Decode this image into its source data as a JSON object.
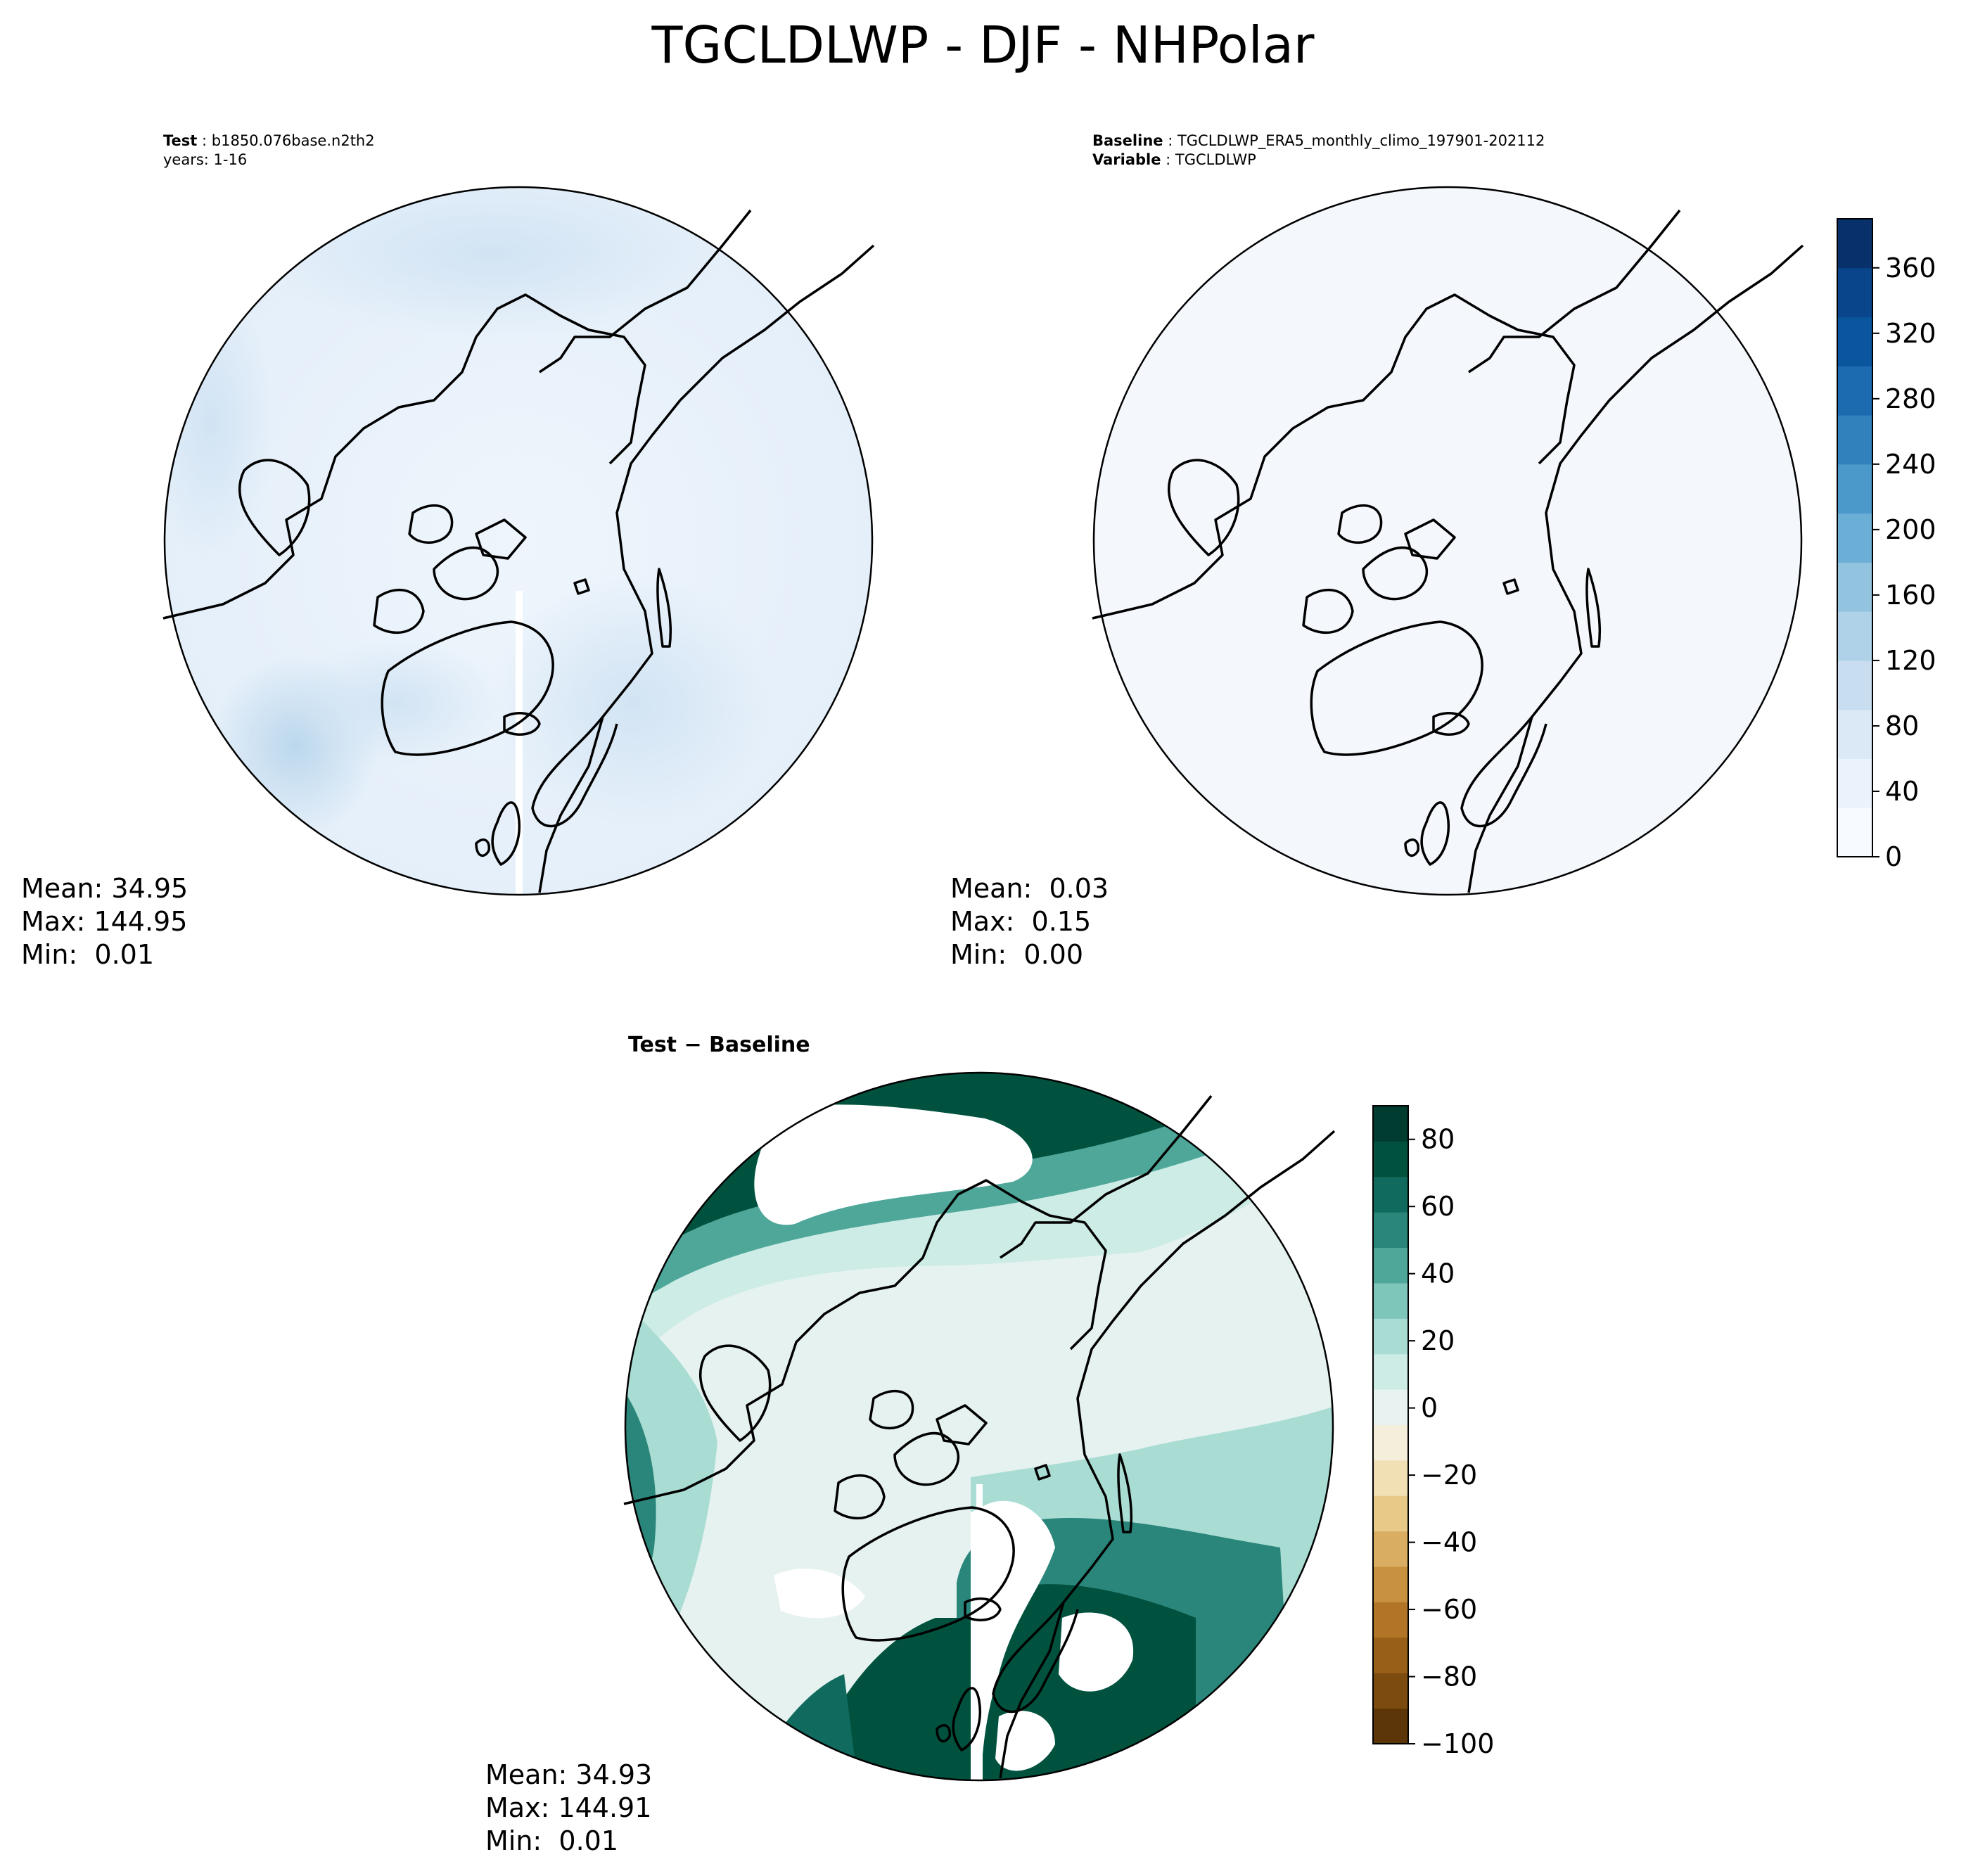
{
  "figure": {
    "title": "TGCLDLWP - DJF - NHPolar"
  },
  "test_panel": {
    "label_key": "Test",
    "label_value": "b1850.076base.n2th2",
    "years": "years: 1-16",
    "stats": {
      "mean": "Mean: 34.95",
      "max": "Max: 144.95",
      "min": "Min:  0.01"
    },
    "field": "test-field"
  },
  "baseline_panel": {
    "label_key": "Baseline",
    "label_value": "TGCLDLWP_ERA5_monthly_climo_197901-202112",
    "variable_key": "Variable",
    "variable_value": "TGCLDLWP",
    "stats": {
      "mean": "Mean:  0.03",
      "max": "Max:  0.15",
      "min": "Min:  0.00"
    },
    "field": "baseline-field"
  },
  "diff_panel": {
    "title": "Test − Baseline",
    "stats": {
      "mean": "Mean: 34.93",
      "max": "Max: 144.91",
      "min": "Min:  0.01"
    },
    "field": "difference-field"
  },
  "colorbar_top": {
    "colormap": "Blues",
    "range": [
      0,
      390
    ],
    "ticks": [
      "0",
      "40",
      "80",
      "120",
      "160",
      "200",
      "240",
      "280",
      "320",
      "360"
    ],
    "tick_values": [
      0,
      40,
      80,
      120,
      160,
      200,
      240,
      280,
      320,
      360
    ],
    "colors": [
      "#f7fbff",
      "#eaf3fb",
      "#dbe9f6",
      "#c8ddf0",
      "#b0d2e8",
      "#93c4df",
      "#6baed6",
      "#4b98ca",
      "#3181bd",
      "#1c6aaf",
      "#0b559f",
      "#08458a",
      "#08306b"
    ]
  },
  "colorbar_bottom": {
    "colormap": "BrBG",
    "range": [
      -100,
      90
    ],
    "ticks": [
      "−100",
      "−80",
      "−60",
      "−40",
      "−20",
      "0",
      "20",
      "40",
      "60",
      "80"
    ],
    "tick_values": [
      -100,
      -80,
      -60,
      -40,
      -20,
      0,
      20,
      40,
      60,
      80
    ],
    "colors": [
      "#5c3608",
      "#7b4b0f",
      "#985f18",
      "#b27527",
      "#c8913f",
      "#d9ad62",
      "#e8c988",
      "#f1e0b4",
      "#f5eedb",
      "#e8f2f0",
      "#cdece6",
      "#a9ddd4",
      "#7ec6b9",
      "#4fa79a",
      "#2a867a",
      "#106b5e",
      "#00523f",
      "#003c30"
    ]
  }
}
